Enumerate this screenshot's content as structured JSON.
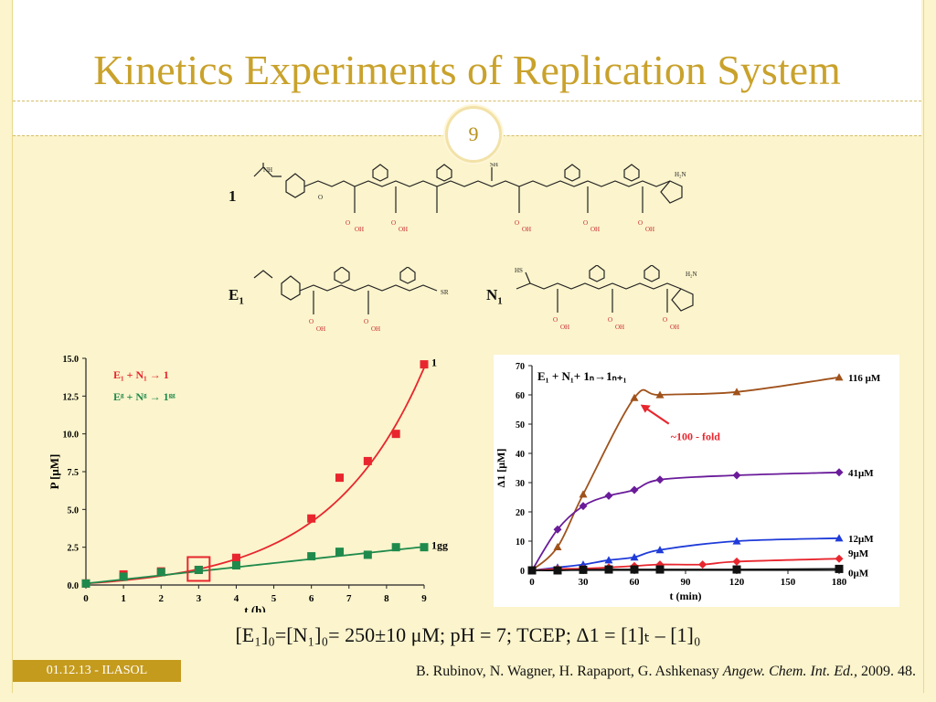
{
  "title": "Kinetics Experiments of Replication System",
  "page_number": "9",
  "molecules": {
    "label_1": "1",
    "label_e1": "E",
    "label_e1_sub": "1",
    "label_n1": "N",
    "label_n1_sub": "1",
    "atom_labels": [
      "NH",
      "O",
      "OH",
      "SH",
      "H2N",
      "N",
      "SR",
      "HS",
      "H"
    ]
  },
  "formula": "[E₁]₀=[N₁]₀= 250±10 μM; pH = 7; TCEP; Δ1 = [1]ₜ – [1]₀",
  "footer": {
    "date_label": "01.12.13 - ILASOL",
    "citation_authors": "B. Rubinov, N. Wagner, H. Rapaport, G. Ashkenasy ",
    "citation_journal": "Angew. Chem. Int. Ed.,",
    "citation_year": " 2009. 48."
  },
  "colors": {
    "title": "#c9a22c",
    "red_series": "#e8262e",
    "green_series": "#1f8a4c",
    "brown_series": "#a0521b",
    "purple_series": "#6a1b9a",
    "blue_series": "#1f3bd9",
    "black_series": "#111111"
  },
  "chart_data": [
    {
      "type": "scatter",
      "xlabel": "t (h)",
      "ylabel": "P [μM]",
      "xlim": [
        0,
        9
      ],
      "ylim": [
        0,
        15
      ],
      "xticks": [
        "0",
        "1",
        "2",
        "3",
        "4",
        "5",
        "6",
        "7",
        "8",
        "9"
      ],
      "yticks": [
        "0.0",
        "2.5",
        "5.0",
        "7.5",
        "10.0",
        "12.5",
        "15.0"
      ],
      "legend": [
        "E₁ + N₁ → 1",
        "Eᵍ + Nᵍ → 1ᵍᵍ"
      ],
      "highlight_box_x": 3,
      "series": [
        {
          "name": "1",
          "color": "#e8262e",
          "x": [
            0,
            1,
            2,
            3,
            4,
            6,
            6.75,
            7.5,
            8.25,
            9
          ],
          "y": [
            0.1,
            0.7,
            0.9,
            1.0,
            1.8,
            4.4,
            7.1,
            8.2,
            10.0,
            14.6
          ]
        },
        {
          "name": "1gg",
          "color": "#1f8a4c",
          "x": [
            0,
            1,
            2,
            3,
            4,
            6,
            6.75,
            7.5,
            8.25,
            9
          ],
          "y": [
            0.1,
            0.55,
            0.85,
            1.0,
            1.3,
            1.9,
            2.2,
            2.0,
            2.5,
            2.5
          ]
        }
      ]
    },
    {
      "type": "line",
      "title": "E₁ + N₁+ 1ₙ→1ₙ₊₁",
      "xlabel": "t (min)",
      "ylabel": "Δ1 [μM]",
      "xlim": [
        0,
        180
      ],
      "ylim": [
        0,
        70
      ],
      "xticks": [
        "0",
        "30",
        "60",
        "90",
        "120",
        "150",
        "180"
      ],
      "yticks": [
        "0",
        "10",
        "20",
        "30",
        "40",
        "50",
        "60",
        "70"
      ],
      "annotation": "~100 - fold",
      "series": [
        {
          "name": "116 μM",
          "color": "#a0521b",
          "marker": "triangle",
          "x": [
            0,
            15,
            30,
            60,
            75,
            120,
            180
          ],
          "y": [
            0,
            8,
            26,
            59,
            60,
            61,
            66
          ]
        },
        {
          "name": "41μM",
          "color": "#6a1b9a",
          "marker": "diamond",
          "x": [
            0,
            15,
            30,
            45,
            60,
            75,
            120,
            180
          ],
          "y": [
            0,
            14,
            22,
            25.5,
            27.5,
            31,
            32.5,
            33.5
          ]
        },
        {
          "name": "12μM",
          "color": "#1f3bd9",
          "marker": "triangle",
          "x": [
            0,
            15,
            30,
            45,
            60,
            75,
            120,
            180
          ],
          "y": [
            0,
            1,
            2,
            3.5,
            4.5,
            7,
            10,
            11
          ]
        },
        {
          "name": "9μM",
          "color": "#e8262e",
          "marker": "diamond",
          "x": [
            0,
            15,
            30,
            45,
            60,
            75,
            100,
            120,
            180
          ],
          "y": [
            0,
            0.5,
            0.6,
            1,
            1.5,
            2,
            2,
            3,
            4
          ]
        },
        {
          "name": "0μM",
          "color": "#111111",
          "marker": "square",
          "x": [
            0,
            15,
            30,
            45,
            60,
            75,
            120,
            180
          ],
          "y": [
            0,
            0,
            0.2,
            0.3,
            0.3,
            0.3,
            0.3,
            0.5
          ]
        }
      ]
    }
  ]
}
